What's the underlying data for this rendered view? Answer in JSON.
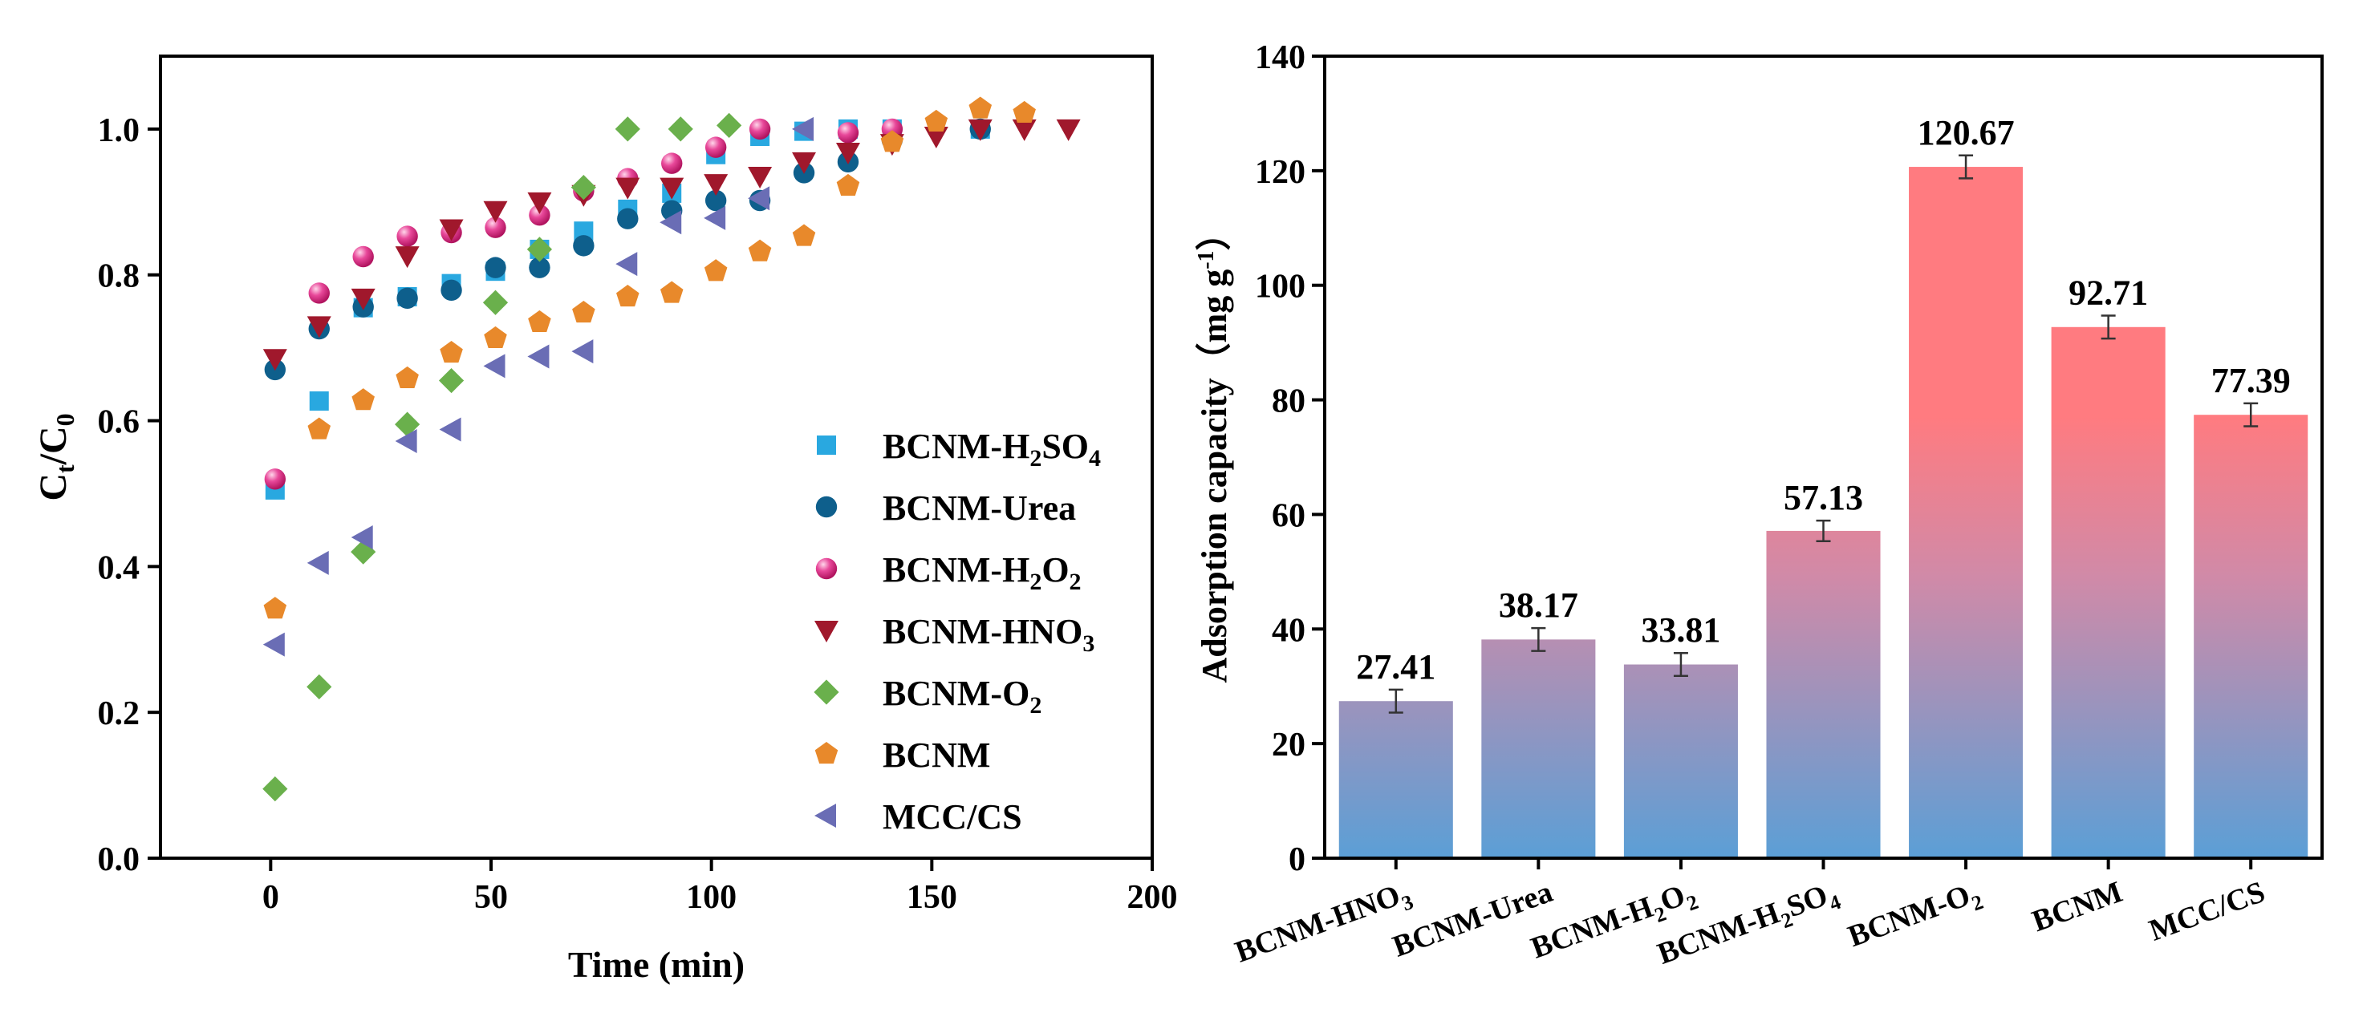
{
  "chart_data": [
    {
      "type": "scatter",
      "xlabel": "Time (min)",
      "ylabel": {
        "base": "C",
        "sub1": "t",
        "mid": "/C",
        "sub2": "0"
      },
      "xlim": [
        -25,
        200
      ],
      "ylim": [
        0,
        1.1
      ],
      "xticks": [
        "0",
        "50",
        "100",
        "150",
        "200"
      ],
      "yticks": [
        "0.0",
        "0.2",
        "0.4",
        "0.6",
        "0.8",
        "1.0"
      ],
      "series": [
        {
          "name": "BCNM-H2SO4",
          "legend": [
            "BCNM-H",
            "2",
            "SO",
            "4"
          ],
          "marker": "square",
          "color": "#29a8e0",
          "x": [
            1,
            11,
            21,
            31,
            41,
            51,
            61,
            71,
            81,
            91,
            101,
            111,
            121,
            131,
            141,
            161
          ],
          "y": [
            0.505,
            0.627,
            0.755,
            0.77,
            0.788,
            0.805,
            0.835,
            0.86,
            0.89,
            0.912,
            0.965,
            0.99,
            0.997,
            1.0,
            1.0,
            1.0
          ]
        },
        {
          "name": "BCNM-Urea",
          "legend": [
            "BCNM-Urea"
          ],
          "marker": "circle",
          "color": "#0e5f8c",
          "x": [
            1,
            11,
            21,
            31,
            41,
            51,
            61,
            71,
            81,
            91,
            101,
            111,
            121,
            131,
            141,
            161
          ],
          "y": [
            0.67,
            0.726,
            0.756,
            0.768,
            0.779,
            0.81,
            0.81,
            0.84,
            0.877,
            0.888,
            0.902,
            0.902,
            0.94,
            0.955,
            0.985,
            1.0
          ]
        },
        {
          "name": "BCNM-H2O2",
          "legend": [
            "BCNM-H",
            "2",
            "O",
            "2"
          ],
          "marker": "sphere",
          "color": "#e0338c",
          "x": [
            1,
            11,
            21,
            31,
            41,
            51,
            61,
            71,
            81,
            91,
            101,
            111,
            131,
            141
          ],
          "y": [
            0.52,
            0.775,
            0.825,
            0.853,
            0.858,
            0.865,
            0.882,
            0.915,
            0.932,
            0.953,
            0.975,
            1.0,
            0.995,
            1.0
          ]
        },
        {
          "name": "BCNM-HNO3",
          "legend": [
            "BCNM-HNO",
            "3"
          ],
          "marker": "triangle-down",
          "color": "#a0182c",
          "x": [
            1,
            11,
            21,
            31,
            41,
            51,
            61,
            71,
            81,
            91,
            101,
            111,
            121,
            131,
            141,
            151,
            161,
            171,
            181
          ],
          "y": [
            0.685,
            0.73,
            0.768,
            0.826,
            0.863,
            0.888,
            0.9,
            0.91,
            0.92,
            0.92,
            0.925,
            0.935,
            0.955,
            0.968,
            0.98,
            0.99,
            1.0,
            1.0,
            1.0
          ]
        },
        {
          "name": "BCNM-O2",
          "legend": [
            "BCNM-O",
            "2"
          ],
          "marker": "diamond",
          "color": "#6ab04c",
          "x": [
            1,
            11,
            21,
            31,
            41,
            51,
            61,
            71,
            81,
            93,
            104
          ],
          "y": [
            0.095,
            0.235,
            0.42,
            0.595,
            0.655,
            0.762,
            0.835,
            0.92,
            1.0,
            1.0,
            1.005
          ]
        },
        {
          "name": "BCNM",
          "legend": [
            "BCNM"
          ],
          "marker": "pentagon",
          "color": "#e8892b",
          "x": [
            1,
            11,
            21,
            31,
            41,
            51,
            61,
            71,
            81,
            91,
            101,
            111,
            121,
            131,
            141,
            151,
            161,
            171
          ],
          "y": [
            0.342,
            0.588,
            0.628,
            0.658,
            0.693,
            0.713,
            0.735,
            0.748,
            0.77,
            0.775,
            0.805,
            0.832,
            0.853,
            0.922,
            0.982,
            1.01,
            1.028,
            1.022
          ]
        },
        {
          "name": "MCC/CS",
          "legend": [
            "MCC/CS"
          ],
          "marker": "triangle-left",
          "color": "#6a6db5",
          "x": [
            1,
            11,
            21,
            31,
            41,
            51,
            61,
            71,
            81,
            91,
            101,
            111,
            121
          ],
          "y": [
            0.293,
            0.405,
            0.44,
            0.572,
            0.588,
            0.675,
            0.688,
            0.695,
            0.815,
            0.872,
            0.878,
            0.905,
            1.0
          ]
        }
      ]
    },
    {
      "type": "bar",
      "ylabel": {
        "text": "Adsorption capacity（mg g",
        "sup": "-1",
        "end": "）"
      },
      "ylim": [
        0,
        140
      ],
      "yticks": [
        "0",
        "20",
        "40",
        "60",
        "80",
        "100",
        "120",
        "140"
      ],
      "categories": [
        "BCNM-HNO3",
        "BCNM-Urea",
        "BCNM-H2O2",
        "BCNM-H2SO4",
        "BCNM-O2",
        "BCNM",
        "MCC/CS"
      ],
      "category_labels": [
        [
          "BCNM-HNO",
          "3"
        ],
        [
          "BCNM-Urea"
        ],
        [
          "BCNM-H",
          "2",
          "O",
          "2"
        ],
        [
          "BCNM-H",
          "2",
          "SO",
          "4"
        ],
        [
          "BCNM-O",
          "2"
        ],
        [
          "BCNM"
        ],
        [
          "MCC/CS"
        ]
      ],
      "values": [
        27.41,
        38.17,
        33.81,
        57.13,
        120.67,
        92.71,
        77.39
      ],
      "value_labels": [
        "27.41",
        "38.17",
        "33.81",
        "57.13",
        "120.67",
        "92.71",
        "77.39"
      ],
      "errors": [
        2.0,
        2.0,
        2.0,
        1.8,
        2.0,
        2.0,
        2.0
      ],
      "gradient": {
        "top": "#ff7b80",
        "bottom": "#5b9fd6"
      }
    }
  ]
}
